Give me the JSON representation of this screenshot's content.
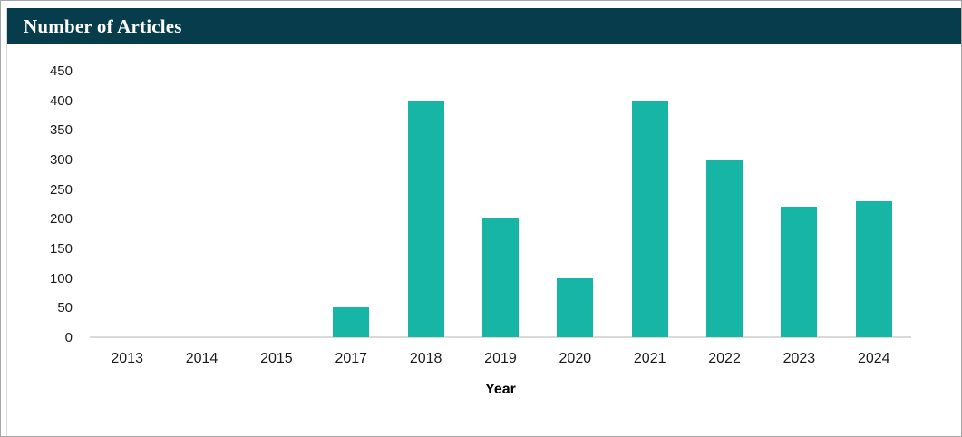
{
  "frame": {
    "outer_border_color": "#a6a6a6",
    "card_border_color": "#d9d9d9"
  },
  "chart_data": {
    "type": "bar",
    "title": "Number of Articles",
    "categories": [
      "2013",
      "2014",
      "2015",
      "2017",
      "2018",
      "2019",
      "2020",
      "2021",
      "2022",
      "2023",
      "2024"
    ],
    "values": [
      0,
      0,
      0,
      50,
      400,
      200,
      100,
      400,
      300,
      220,
      230
    ],
    "xlabel": "Year",
    "ylabel": "",
    "ylim": [
      0,
      450
    ],
    "yticks": [
      0,
      50,
      100,
      150,
      200,
      250,
      300,
      350,
      400,
      450
    ],
    "grid": false,
    "legend": false,
    "bar_color": "#16b5a6",
    "title_bar_color": "#063c4b",
    "title_text_color": "#ffffff",
    "axis_line_color": "#d9d9d9",
    "tick_label_color": "#1a1a1a"
  }
}
